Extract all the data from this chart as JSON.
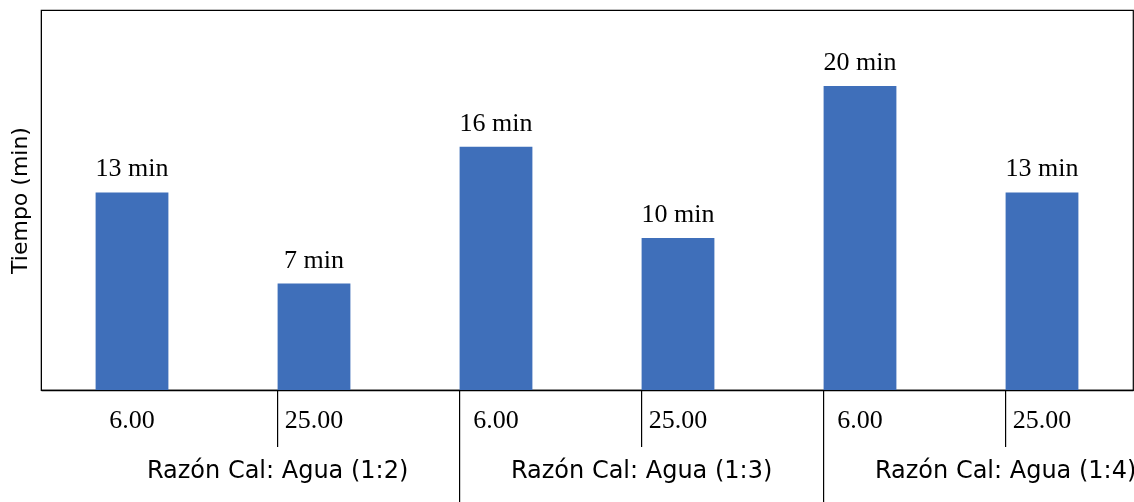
{
  "chart_data": {
    "type": "bar",
    "ylabel": "Tiempo (min)",
    "categories": [
      "6.00",
      "25.00",
      "6.00",
      "25.00",
      "6.00",
      "25.00"
    ],
    "values": [
      13,
      7,
      16,
      10,
      20,
      13
    ],
    "value_labels": [
      "13 min",
      "7 min",
      "16 min",
      "10 min",
      "20 min",
      "13 min"
    ],
    "color": "#3f6fba",
    "ylim": [
      0,
      25
    ],
    "tick_labels": "x",
    "grid": false,
    "annotations": [
      "Razón Cal: Agua (1:2)",
      "Razón Cal: Agua (1:3)",
      "Razón Cal: Agua (1:4)"
    ]
  }
}
